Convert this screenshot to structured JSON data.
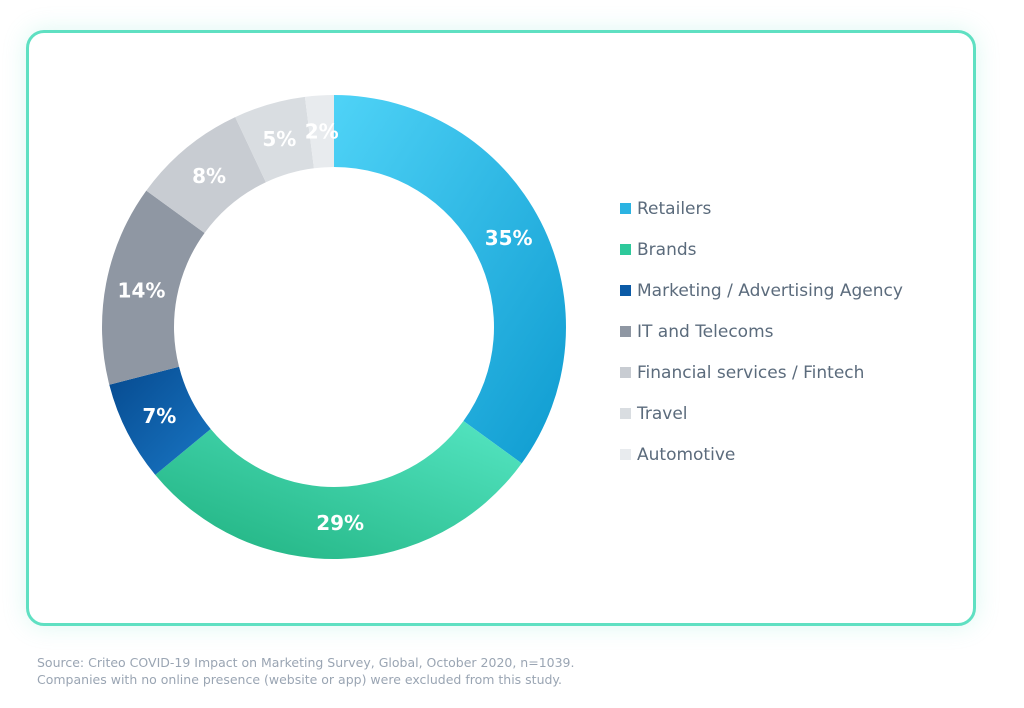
{
  "chart_data": {
    "type": "pie",
    "donut": true,
    "title": "",
    "slices": [
      {
        "label": "Retailers",
        "value": 35,
        "display": "35%",
        "color": "#2bb3e2"
      },
      {
        "label": "Brands",
        "value": 29,
        "display": "29%",
        "color": "#2ec99b"
      },
      {
        "label": "Marketing / Advertising Agency",
        "value": 7,
        "display": "7%",
        "color": "#0b5aa6"
      },
      {
        "label": "IT and Telecoms",
        "value": 14,
        "display": "14%",
        "color": "#8f97a3"
      },
      {
        "label": "Financial services / Fintech",
        "value": 8,
        "display": "8%",
        "color": "#c8ccd2"
      },
      {
        "label": "Travel",
        "value": 5,
        "display": "5%",
        "color": "#d9dde1"
      },
      {
        "label": "Automotive",
        "value": 2,
        "display": "2%",
        "color": "#e8ebee"
      }
    ],
    "legend_position": "right"
  },
  "source": {
    "line1": "Source: Criteo COVID-19 Impact on Marketing Survey, Global, October 2020, n=1039.",
    "line2": "Companies with no online presence (website or app) were excluded from this study."
  }
}
